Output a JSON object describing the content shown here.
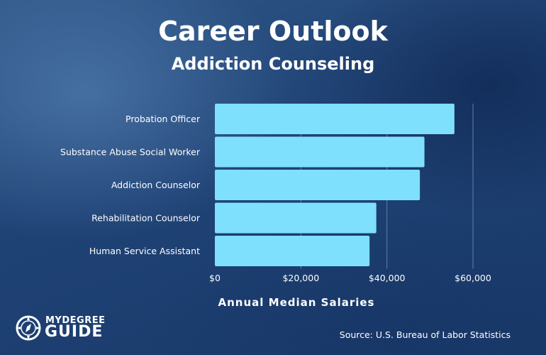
{
  "header": {
    "title": "Career Outlook",
    "subtitle": "Addiction Counseling"
  },
  "chart_data": {
    "type": "bar",
    "orientation": "horizontal",
    "title": "Career Outlook",
    "subtitle": "Addiction Counseling",
    "categories": [
      "Probation Officer",
      "Substance Abuse Social Worker",
      "Addiction Counselor",
      "Rehabilitation Counselor",
      "Human Service Assistant"
    ],
    "values": [
      55690,
      48720,
      47660,
      37530,
      35960
    ],
    "xlabel": "Annual Median Salaries",
    "ylabel": "",
    "xlim": [
      0,
      60000
    ],
    "xticks": [
      0,
      20000,
      40000,
      60000
    ],
    "xtick_labels": [
      "$0",
      "$20,000",
      "$40,000",
      "$60,000"
    ],
    "grid": true,
    "bar_color": "#7ee0fc"
  },
  "footer": {
    "source": "Source: U.S. Bureau of Labor Statistics",
    "logo_line1": "MYDEGREE",
    "logo_line2": "GUIDE"
  },
  "colors": {
    "bar": "#7ee0fc",
    "text": "#ffffff",
    "gridline": "#5f7fa8"
  },
  "icons": {
    "logo": "compass-icon"
  }
}
